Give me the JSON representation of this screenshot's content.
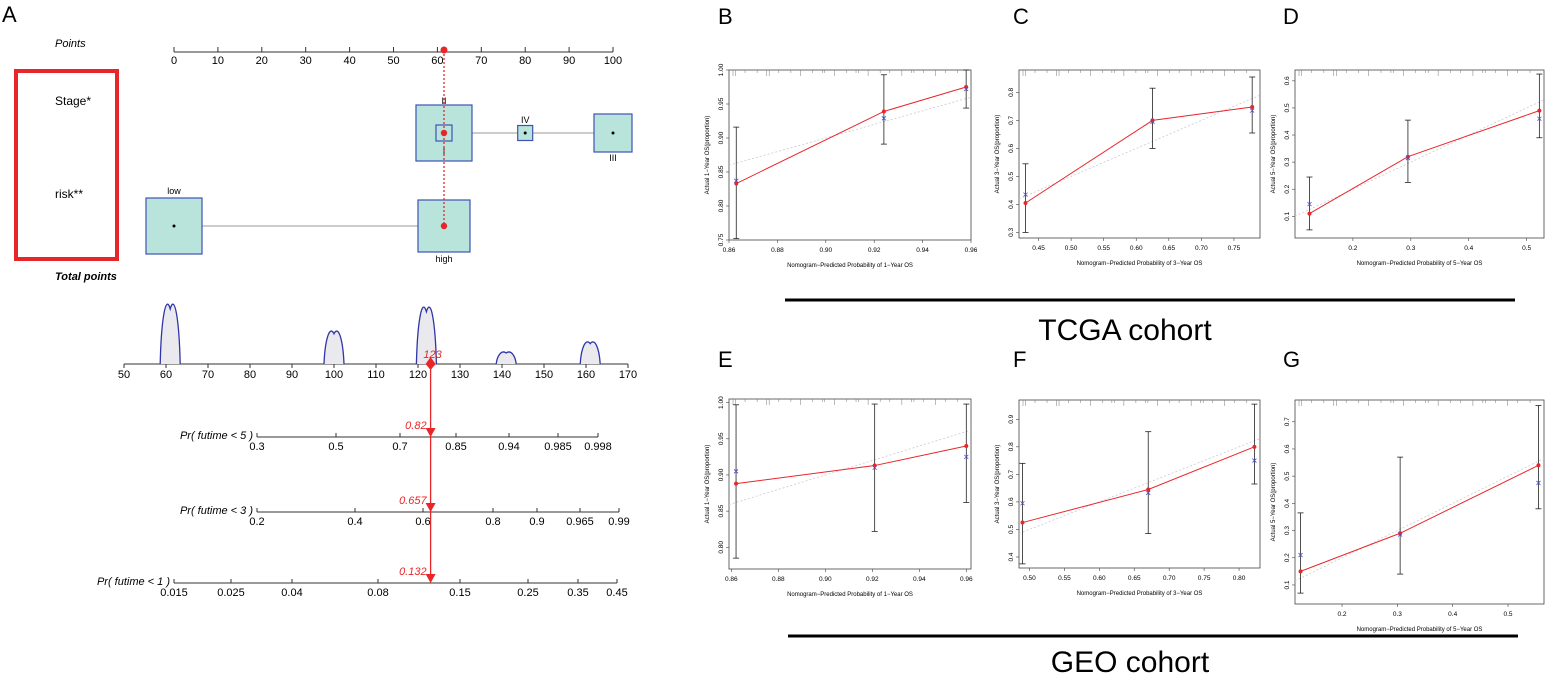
{
  "panel_letters": {
    "A": "A",
    "B": "B",
    "C": "C",
    "D": "D",
    "E": "E",
    "F": "F",
    "G": "G"
  },
  "cohorts": {
    "top": "TCGA cohort",
    "bottom": "GEO cohort"
  },
  "colors": {
    "red": "#e8262a",
    "box_fill": "#b9e4dc",
    "box_stroke": "#3f51b5",
    "curve": "#3035a8"
  },
  "chart_data": [
    {
      "type": "nomogram",
      "panel": "A",
      "row_labels": {
        "points": "Points",
        "stage": "Stage*",
        "risk": "risk**",
        "total": "Total points"
      },
      "points_axis": {
        "range": [
          0,
          100
        ],
        "ticks": [
          "0",
          "10",
          "20",
          "30",
          "40",
          "50",
          "60",
          "70",
          "80",
          "90",
          "100"
        ]
      },
      "stage_levels": [
        {
          "label": "II",
          "points": 61.5,
          "weight": "large"
        },
        {
          "label": "I",
          "points": 61.5,
          "weight": "small"
        },
        {
          "label": "IV",
          "points": 80,
          "weight": "small"
        },
        {
          "label": "III",
          "points": 100,
          "weight": "medium"
        }
      ],
      "risk_levels": [
        {
          "label": "low",
          "points": 0
        },
        {
          "label": "high",
          "points": 61.5
        }
      ],
      "selected_points": 61.5,
      "total_points_axis": {
        "range": [
          50,
          170
        ],
        "ticks": [
          "50",
          "60",
          "70",
          "80",
          "90",
          "100",
          "110",
          "120",
          "130",
          "140",
          "150",
          "160",
          "170"
        ]
      },
      "total_points_density": [
        {
          "center": 61,
          "height": 1.0
        },
        {
          "center": 100,
          "height": 0.55
        },
        {
          "center": 122,
          "height": 0.95
        },
        {
          "center": 141,
          "height": 0.2
        },
        {
          "center": 161,
          "height": 0.37
        }
      ],
      "selected_total": {
        "value": 123,
        "label": "123"
      },
      "probability_scales": [
        {
          "label": "Pr( futime < 5 )",
          "ticks": [
            {
              "value": 0.3,
              "label": "0.3"
            },
            {
              "value": 0.5,
              "label": "0.5"
            },
            {
              "value": 0.7,
              "label": "0.7"
            },
            {
              "value": 0.85,
              "label": "0.85"
            },
            {
              "value": 0.94,
              "label": "0.94"
            },
            {
              "value": 0.985,
              "label": "0.985"
            },
            {
              "value": 0.998,
              "label": "0.998"
            }
          ],
          "predicted": {
            "value": 0.82,
            "label": "0.82"
          }
        },
        {
          "label": "Pr( futime < 3 )",
          "ticks": [
            {
              "value": 0.2,
              "label": "0.2"
            },
            {
              "value": 0.4,
              "label": "0.4"
            },
            {
              "value": 0.6,
              "label": "0.6"
            },
            {
              "value": 0.8,
              "label": "0.8"
            },
            {
              "value": 0.9,
              "label": "0.9"
            },
            {
              "value": 0.965,
              "label": "0.965"
            },
            {
              "value": 0.99,
              "label": "0.99"
            }
          ],
          "predicted": {
            "value": 0.657,
            "label": "0.657"
          }
        },
        {
          "label": "Pr( futime < 1 )",
          "ticks": [
            {
              "value": 0.015,
              "label": "0.015"
            },
            {
              "value": 0.025,
              "label": "0.025"
            },
            {
              "value": 0.04,
              "label": "0.04"
            },
            {
              "value": 0.08,
              "label": "0.08"
            },
            {
              "value": 0.15,
              "label": "0.15"
            },
            {
              "value": 0.25,
              "label": "0.25"
            },
            {
              "value": 0.35,
              "label": "0.35"
            },
            {
              "value": 0.45,
              "label": "0.45"
            }
          ],
          "predicted": {
            "value": 0.132,
            "label": "0.132"
          }
        }
      ]
    },
    {
      "type": "calibration",
      "panel": "B",
      "cohort": "TCGA",
      "xlabel": "Nomogram−Predicted Probability of 1−Year OS",
      "ylabel": "Actual 1−Year OS(proportion)",
      "xlim": [
        0.86,
        0.96
      ],
      "ylim": [
        0.75,
        1.0
      ],
      "xticks": [
        "0.86",
        "0.88",
        "0.90",
        "0.92",
        "0.94",
        "0.96"
      ],
      "yticks": [
        "0.75",
        "0.80",
        "0.85",
        "0.90",
        "0.95",
        "1.00"
      ],
      "points": [
        {
          "x": 0.863,
          "y": 0.833,
          "lo": 0.752,
          "hi": 0.916,
          "xc": 0.837
        },
        {
          "x": 0.924,
          "y": 0.939,
          "lo": 0.891,
          "hi": 0.993,
          "xc": 0.929
        },
        {
          "x": 0.958,
          "y": 0.975,
          "lo": 0.944,
          "hi": 1.0,
          "xc": 0.972
        }
      ]
    },
    {
      "type": "calibration",
      "panel": "C",
      "cohort": "TCGA",
      "xlabel": "Nomogram−Predicted Probability of 3−Year OS",
      "ylabel": "Actual 3−Year OS(proportion)",
      "xlim": [
        0.42,
        0.79
      ],
      "ylim": [
        0.28,
        0.88
      ],
      "xticks": [
        "0.45",
        "0.50",
        "0.55",
        "0.60",
        "0.65",
        "0.70",
        "0.75"
      ],
      "yticks": [
        "0.3",
        "0.4",
        "0.5",
        "0.6",
        "0.7",
        "0.8"
      ],
      "points": [
        {
          "x": 0.43,
          "y": 0.405,
          "lo": 0.3,
          "hi": 0.545,
          "xc": 0.435
        },
        {
          "x": 0.625,
          "y": 0.7,
          "lo": 0.6,
          "hi": 0.815,
          "xc": 0.695
        },
        {
          "x": 0.778,
          "y": 0.748,
          "lo": 0.655,
          "hi": 0.855,
          "xc": 0.735
        }
      ]
    },
    {
      "type": "calibration",
      "panel": "D",
      "cohort": "TCGA",
      "xlabel": "Nomogram−Predicted Probability of 5−Year OS",
      "ylabel": "Actual 5−Year OS(proportion)",
      "xlim": [
        0.1,
        0.53
      ],
      "ylim": [
        0.02,
        0.64
      ],
      "xticks": [
        "0.2",
        "0.3",
        "0.4",
        "0.5"
      ],
      "yticks": [
        "0.1",
        "0.2",
        "0.3",
        "0.4",
        "0.5",
        "0.6"
      ],
      "points": [
        {
          "x": 0.125,
          "y": 0.11,
          "lo": 0.05,
          "hi": 0.245,
          "xc": 0.145
        },
        {
          "x": 0.295,
          "y": 0.32,
          "lo": 0.225,
          "hi": 0.455,
          "xc": 0.315
        },
        {
          "x": 0.522,
          "y": 0.49,
          "lo": 0.39,
          "hi": 0.625,
          "xc": 0.46
        }
      ]
    },
    {
      "type": "calibration",
      "panel": "E",
      "cohort": "GEO",
      "xlabel": "Nomogram−Predicted Probability of 1−Year OS",
      "ylabel": "Actual 1−Year OS(proportion)",
      "xlim": [
        0.859,
        0.962
      ],
      "ylim": [
        0.77,
        1.005
      ],
      "xticks": [
        "0.86",
        "0.88",
        "0.90",
        "0.92",
        "0.94",
        "0.96"
      ],
      "yticks": [
        "0.80",
        "0.85",
        "0.90",
        "0.95",
        "1.00"
      ],
      "points": [
        {
          "x": 0.862,
          "y": 0.888,
          "lo": 0.785,
          "hi": 0.997,
          "xc": 0.905
        },
        {
          "x": 0.921,
          "y": 0.913,
          "lo": 0.822,
          "hi": 0.998,
          "xc": 0.91
        },
        {
          "x": 0.96,
          "y": 0.94,
          "lo": 0.862,
          "hi": 0.998,
          "xc": 0.925
        }
      ]
    },
    {
      "type": "calibration",
      "panel": "F",
      "cohort": "GEO",
      "xlabel": "Nomogram−Predicted Probability of 3−Year OS",
      "ylabel": "Actual 3−Year OS(proportion)",
      "xlim": [
        0.485,
        0.83
      ],
      "ylim": [
        0.36,
        0.97
      ],
      "xticks": [
        "0.50",
        "0.55",
        "0.60",
        "0.65",
        "0.70",
        "0.75",
        "0.80"
      ],
      "yticks": [
        "0.4",
        "0.5",
        "0.6",
        "0.7",
        "0.8",
        "0.9"
      ],
      "points": [
        {
          "x": 0.49,
          "y": 0.525,
          "lo": 0.375,
          "hi": 0.74,
          "xc": 0.595
        },
        {
          "x": 0.67,
          "y": 0.645,
          "lo": 0.485,
          "hi": 0.855,
          "xc": 0.633
        },
        {
          "x": 0.822,
          "y": 0.8,
          "lo": 0.665,
          "hi": 0.955,
          "xc": 0.75
        }
      ]
    },
    {
      "type": "calibration",
      "panel": "G",
      "cohort": "GEO",
      "xlabel": "Nomogram−Predicted Probability of 5−Year OS",
      "ylabel": "Actual 5−Year OS(proportion)",
      "xlim": [
        0.115,
        0.565
      ],
      "ylim": [
        0.03,
        0.78
      ],
      "xticks": [
        "0.2",
        "0.3",
        "0.4",
        "0.5"
      ],
      "yticks": [
        "0.1",
        "0.2",
        "0.3",
        "0.4",
        "0.5",
        "0.6",
        "0.7"
      ],
      "points": [
        {
          "x": 0.125,
          "y": 0.15,
          "lo": 0.07,
          "hi": 0.365,
          "xc": 0.21
        },
        {
          "x": 0.305,
          "y": 0.29,
          "lo": 0.14,
          "hi": 0.57,
          "xc": 0.285
        },
        {
          "x": 0.555,
          "y": 0.54,
          "lo": 0.38,
          "hi": 0.76,
          "xc": 0.475
        }
      ]
    }
  ]
}
